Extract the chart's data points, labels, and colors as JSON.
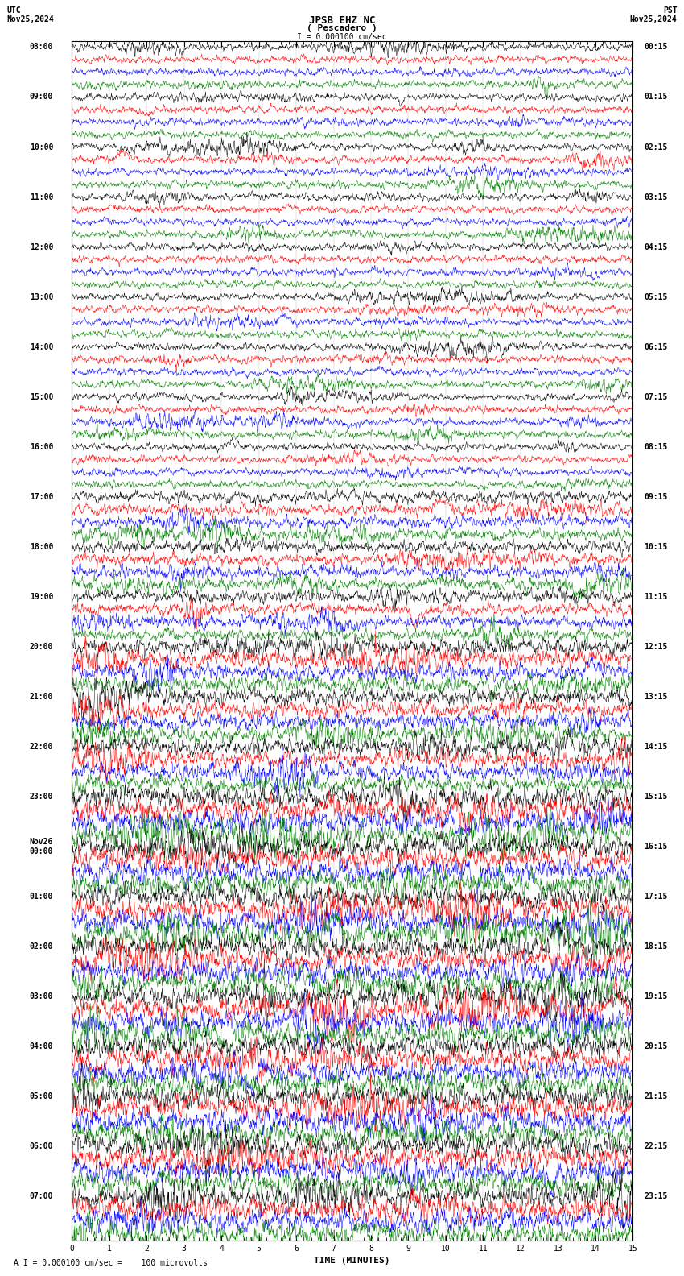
{
  "title_line1": "JPSB EHZ NC",
  "title_line2": "( Pescadero )",
  "scale_text": "I = 0.000100 cm/sec",
  "utc_label": "UTC",
  "utc_date": "Nov25,2024",
  "pst_label": "PST",
  "pst_date": "Nov25,2024",
  "footer_text": "A I = 0.000100 cm/sec =    100 microvolts",
  "xlabel": "TIME (MINUTES)",
  "bg_color": "#ffffff",
  "trace_colors": [
    "black",
    "red",
    "blue",
    "green"
  ],
  "left_times_utc": [
    "08:00",
    "",
    "",
    "",
    "09:00",
    "",
    "",
    "",
    "10:00",
    "",
    "",
    "",
    "11:00",
    "",
    "",
    "",
    "12:00",
    "",
    "",
    "",
    "13:00",
    "",
    "",
    "",
    "14:00",
    "",
    "",
    "",
    "15:00",
    "",
    "",
    "",
    "16:00",
    "",
    "",
    "",
    "17:00",
    "",
    "",
    "",
    "18:00",
    "",
    "",
    "",
    "19:00",
    "",
    "",
    "",
    "20:00",
    "",
    "",
    "",
    "21:00",
    "",
    "",
    "",
    "22:00",
    "",
    "",
    "",
    "23:00",
    "",
    "",
    "",
    "Nov26\n00:00",
    "",
    "",
    "",
    "01:00",
    "",
    "",
    "",
    "02:00",
    "",
    "",
    "",
    "03:00",
    "",
    "",
    "",
    "04:00",
    "",
    "",
    "",
    "05:00",
    "",
    "",
    "",
    "06:00",
    "",
    "",
    "",
    "07:00",
    "",
    "",
    ""
  ],
  "right_times_pst": [
    "00:15",
    "",
    "",
    "",
    "01:15",
    "",
    "",
    "",
    "02:15",
    "",
    "",
    "",
    "03:15",
    "",
    "",
    "",
    "04:15",
    "",
    "",
    "",
    "05:15",
    "",
    "",
    "",
    "06:15",
    "",
    "",
    "",
    "07:15",
    "",
    "",
    "",
    "08:15",
    "",
    "",
    "",
    "09:15",
    "",
    "",
    "",
    "10:15",
    "",
    "",
    "",
    "11:15",
    "",
    "",
    "",
    "12:15",
    "",
    "",
    "",
    "13:15",
    "",
    "",
    "",
    "14:15",
    "",
    "",
    "",
    "15:15",
    "",
    "",
    "",
    "16:15",
    "",
    "",
    "",
    "17:15",
    "",
    "",
    "",
    "18:15",
    "",
    "",
    "",
    "19:15",
    "",
    "",
    "",
    "20:15",
    "",
    "",
    "",
    "21:15",
    "",
    "",
    "",
    "22:15",
    "",
    "",
    "",
    "23:15",
    "",
    "",
    ""
  ],
  "num_rows": 96,
  "traces_per_row": 4,
  "minutes": 15,
  "samples": 1800,
  "font_size_title": 9,
  "font_size_labels": 7,
  "font_size_axis": 7,
  "font_size_footer": 7
}
